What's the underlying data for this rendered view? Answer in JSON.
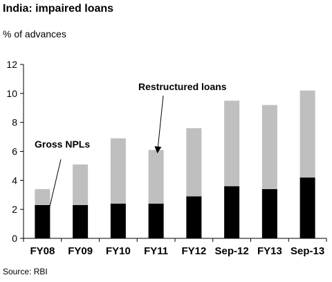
{
  "source": "Source: RBI",
  "chart_data": {
    "type": "bar",
    "stacked": true,
    "title": "India: impaired loans",
    "subtitle": "% of advances",
    "categories": [
      "FY08",
      "FY09",
      "FY10",
      "FY11",
      "FY12",
      "Sep-12",
      "FY13",
      "Sep-13"
    ],
    "series": [
      {
        "name": "Gross NPLs",
        "color": "#000000",
        "values": [
          2.3,
          2.3,
          2.4,
          2.4,
          2.9,
          3.6,
          3.4,
          4.2
        ]
      },
      {
        "name": "Restructured loans",
        "color": "#bfbfbf",
        "values": [
          1.1,
          2.8,
          4.5,
          3.7,
          4.7,
          5.9,
          5.8,
          6.0
        ]
      }
    ],
    "ylim": [
      0,
      12
    ],
    "yticks": [
      0,
      2,
      4,
      6,
      8,
      10,
      12
    ],
    "grid": false,
    "annotations": [
      {
        "text": "Restructured loans",
        "series": "Restructured loans",
        "target_index": 3
      },
      {
        "text": "Gross NPLs",
        "series": "Gross NPLs",
        "target_index": 0
      }
    ]
  }
}
